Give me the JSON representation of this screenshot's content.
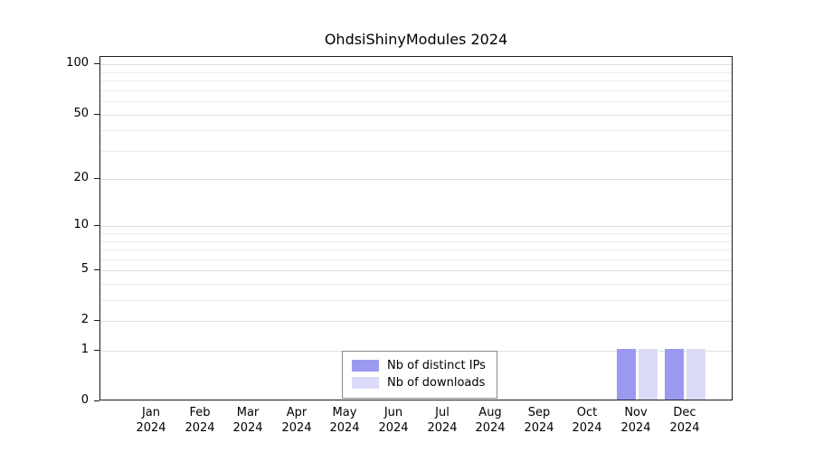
{
  "chart_data": {
    "type": "bar",
    "title": "OhdsiShinyModules 2024",
    "categories": [
      "Jan",
      "Feb",
      "Mar",
      "Apr",
      "May",
      "Jun",
      "Jul",
      "Aug",
      "Sep",
      "Oct",
      "Nov",
      "Dec"
    ],
    "year": "2024",
    "series": [
      {
        "name": "Nb of distinct IPs",
        "color": "#9a9af0",
        "values": [
          0,
          0,
          0,
          0,
          0,
          0,
          0,
          0,
          0,
          0,
          1,
          1
        ]
      },
      {
        "name": "Nb of downloads",
        "color": "#dbdbf8",
        "values": [
          0,
          0,
          0,
          0,
          0,
          0,
          0,
          0,
          0,
          0,
          1,
          1
        ]
      }
    ],
    "y_scale": "log1p",
    "ylim": [
      0,
      111
    ],
    "y_ticks": [
      100,
      50,
      20,
      10,
      5,
      2,
      1,
      0
    ],
    "y_gridlines": [
      1,
      2,
      3,
      4,
      5,
      6,
      7,
      8,
      9,
      10,
      20,
      30,
      40,
      50,
      60,
      70,
      80,
      90,
      100
    ],
    "grid": true,
    "legend_position": "bottom-center"
  }
}
